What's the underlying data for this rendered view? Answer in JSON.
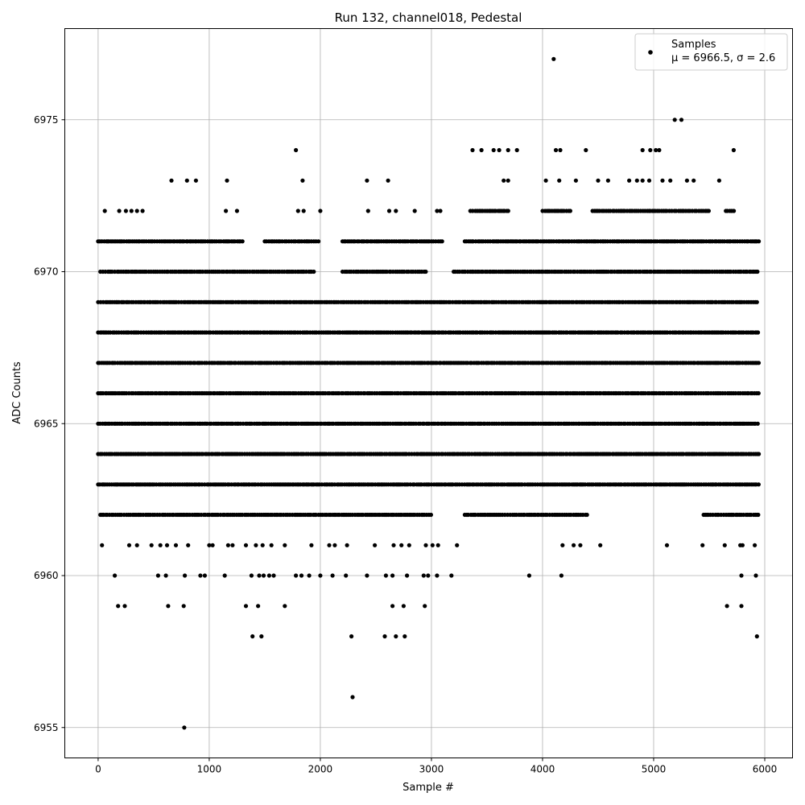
{
  "chart_data": {
    "type": "scatter",
    "title": "Run 132, channel018, Pedestal",
    "xlabel": "Sample #",
    "ylabel": "ADC Counts",
    "xlim": [
      -300,
      6250
    ],
    "ylim": [
      6954,
      6978
    ],
    "xticks": [
      0,
      1000,
      2000,
      3000,
      4000,
      5000,
      6000
    ],
    "yticks": [
      6955,
      6960,
      6965,
      6970,
      6975
    ],
    "grid": true,
    "legend_position": "top-right",
    "series": [
      {
        "name": "Samples",
        "stats_label": "μ = 6966.5, σ = 2.6",
        "color": "#000000",
        "marker": "circle",
        "level_ranges": [
          {
            "y": 6971,
            "ranges": [
              [
                0,
                1300
              ],
              [
                1500,
                2000
              ],
              [
                2200,
                3100
              ],
              [
                3300,
                5950
              ]
            ]
          },
          {
            "y": 6970,
            "ranges": [
              [
                20,
                1950
              ],
              [
                2200,
                2950
              ],
              [
                3200,
                5950
              ]
            ]
          },
          {
            "y": 6969,
            "ranges": [
              [
                0,
                5950
              ]
            ]
          },
          {
            "y": 6968,
            "ranges": [
              [
                0,
                5950
              ]
            ]
          },
          {
            "y": 6967,
            "ranges": [
              [
                0,
                5950
              ]
            ]
          },
          {
            "y": 6966,
            "ranges": [
              [
                0,
                5950
              ]
            ]
          },
          {
            "y": 6965,
            "ranges": [
              [
                0,
                5950
              ]
            ]
          },
          {
            "y": 6964,
            "ranges": [
              [
                0,
                5950
              ]
            ]
          },
          {
            "y": 6963,
            "ranges": [
              [
                0,
                5950
              ]
            ]
          },
          {
            "y": 6962,
            "ranges": [
              [
                20,
                3000
              ],
              [
                3300,
                4400
              ],
              [
                5450,
                5950
              ]
            ]
          },
          {
            "y": 6972,
            "ranges": [
              [
                3350,
                3700
              ],
              [
                4000,
                4250
              ],
              [
                4450,
                5500
              ],
              [
                5650,
                5730
              ]
            ]
          }
        ],
        "sparse_points": [
          [
            60,
            6972
          ],
          [
            190,
            6972
          ],
          [
            250,
            6972
          ],
          [
            300,
            6972
          ],
          [
            350,
            6972
          ],
          [
            400,
            6972
          ],
          [
            1150,
            6972
          ],
          [
            1250,
            6972
          ],
          [
            1800,
            6972
          ],
          [
            1850,
            6972
          ],
          [
            2000,
            6972
          ],
          [
            2430,
            6972
          ],
          [
            2620,
            6972
          ],
          [
            2680,
            6972
          ],
          [
            2850,
            6972
          ],
          [
            3050,
            6972
          ],
          [
            3080,
            6972
          ],
          [
            660,
            6973
          ],
          [
            800,
            6973
          ],
          [
            880,
            6973
          ],
          [
            1160,
            6973
          ],
          [
            1840,
            6973
          ],
          [
            2420,
            6973
          ],
          [
            2610,
            6973
          ],
          [
            3650,
            6973
          ],
          [
            3690,
            6973
          ],
          [
            4030,
            6973
          ],
          [
            4150,
            6973
          ],
          [
            4300,
            6973
          ],
          [
            4500,
            6973
          ],
          [
            4590,
            6973
          ],
          [
            4780,
            6973
          ],
          [
            4850,
            6973
          ],
          [
            4900,
            6973
          ],
          [
            4960,
            6973
          ],
          [
            5080,
            6973
          ],
          [
            5150,
            6973
          ],
          [
            5300,
            6973
          ],
          [
            5360,
            6973
          ],
          [
            5590,
            6973
          ],
          [
            1780,
            6974
          ],
          [
            3370,
            6974
          ],
          [
            3450,
            6974
          ],
          [
            3560,
            6974
          ],
          [
            3610,
            6974
          ],
          [
            3690,
            6974
          ],
          [
            3770,
            6974
          ],
          [
            4120,
            6974
          ],
          [
            4160,
            6974
          ],
          [
            4390,
            6974
          ],
          [
            4900,
            6974
          ],
          [
            4970,
            6974
          ],
          [
            5020,
            6974
          ],
          [
            5050,
            6974
          ],
          [
            5720,
            6974
          ],
          [
            5190,
            6975
          ],
          [
            5250,
            6975
          ],
          [
            4100,
            6977
          ],
          [
            35,
            6961
          ],
          [
            280,
            6961
          ],
          [
            350,
            6961
          ],
          [
            480,
            6961
          ],
          [
            560,
            6961
          ],
          [
            620,
            6961
          ],
          [
            700,
            6961
          ],
          [
            810,
            6961
          ],
          [
            1000,
            6961
          ],
          [
            1030,
            6961
          ],
          [
            1170,
            6961
          ],
          [
            1210,
            6961
          ],
          [
            1330,
            6961
          ],
          [
            1420,
            6961
          ],
          [
            1480,
            6961
          ],
          [
            1560,
            6961
          ],
          [
            1680,
            6961
          ],
          [
            1920,
            6961
          ],
          [
            2080,
            6961
          ],
          [
            2130,
            6961
          ],
          [
            2240,
            6961
          ],
          [
            2490,
            6961
          ],
          [
            2660,
            6961
          ],
          [
            2730,
            6961
          ],
          [
            2800,
            6961
          ],
          [
            2950,
            6961
          ],
          [
            3010,
            6961
          ],
          [
            3060,
            6961
          ],
          [
            3230,
            6961
          ],
          [
            4180,
            6961
          ],
          [
            4280,
            6961
          ],
          [
            4340,
            6961
          ],
          [
            4520,
            6961
          ],
          [
            5120,
            6961
          ],
          [
            5440,
            6961
          ],
          [
            5640,
            6961
          ],
          [
            5780,
            6961
          ],
          [
            5800,
            6961
          ],
          [
            5910,
            6961
          ],
          [
            150,
            6960
          ],
          [
            540,
            6960
          ],
          [
            610,
            6960
          ],
          [
            780,
            6960
          ],
          [
            920,
            6960
          ],
          [
            960,
            6960
          ],
          [
            1140,
            6960
          ],
          [
            1380,
            6960
          ],
          [
            1450,
            6960
          ],
          [
            1490,
            6960
          ],
          [
            1540,
            6960
          ],
          [
            1580,
            6960
          ],
          [
            1780,
            6960
          ],
          [
            1830,
            6960
          ],
          [
            1900,
            6960
          ],
          [
            2000,
            6960
          ],
          [
            2110,
            6960
          ],
          [
            2230,
            6960
          ],
          [
            2420,
            6960
          ],
          [
            2590,
            6960
          ],
          [
            2650,
            6960
          ],
          [
            2780,
            6960
          ],
          [
            2930,
            6960
          ],
          [
            2970,
            6960
          ],
          [
            3050,
            6960
          ],
          [
            3180,
            6960
          ],
          [
            3880,
            6960
          ],
          [
            4170,
            6960
          ],
          [
            5790,
            6960
          ],
          [
            5920,
            6960
          ],
          [
            180,
            6959
          ],
          [
            240,
            6959
          ],
          [
            630,
            6959
          ],
          [
            770,
            6959
          ],
          [
            1330,
            6959
          ],
          [
            1440,
            6959
          ],
          [
            1680,
            6959
          ],
          [
            2650,
            6959
          ],
          [
            2750,
            6959
          ],
          [
            2940,
            6959
          ],
          [
            5660,
            6959
          ],
          [
            5790,
            6959
          ],
          [
            1390,
            6958
          ],
          [
            1470,
            6958
          ],
          [
            2280,
            6958
          ],
          [
            2580,
            6958
          ],
          [
            2680,
            6958
          ],
          [
            2760,
            6958
          ],
          [
            5930,
            6958
          ],
          [
            2290,
            6956
          ],
          [
            775,
            6955
          ]
        ]
      }
    ]
  }
}
